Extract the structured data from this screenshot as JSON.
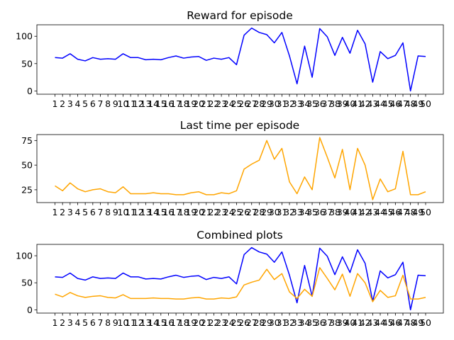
{
  "chart_data": [
    {
      "type": "line",
      "title": "Reward for episode",
      "categories": [
        "1",
        "2",
        "3",
        "4",
        "5",
        "6",
        "7",
        "8",
        "9",
        "10",
        "11",
        "12",
        "13",
        "14",
        "15",
        "16",
        "17",
        "18",
        "19",
        "20",
        "21",
        "22",
        "23",
        "24",
        "25",
        "26",
        "27",
        "28",
        "29",
        "30",
        "31",
        "32",
        "33",
        "34",
        "35",
        "36",
        "37",
        "38",
        "39",
        "40",
        "41",
        "42",
        "43",
        "44",
        "45",
        "46",
        "47",
        "48",
        "49",
        "50"
      ],
      "yticks": [
        0,
        50,
        100
      ],
      "ylim": [
        -6,
        121
      ],
      "series": [
        {
          "color": "#0000ff",
          "values": [
            61,
            60,
            68,
            58,
            55,
            61,
            58,
            59,
            58,
            68,
            61,
            61,
            57,
            58,
            57,
            61,
            64,
            60,
            62,
            63,
            56,
            60,
            58,
            61,
            48,
            102,
            115,
            107,
            103,
            88,
            107,
            64,
            13,
            82,
            25,
            114,
            99,
            65,
            98,
            69,
            111,
            86,
            16,
            72,
            59,
            65,
            88,
            0,
            64,
            63
          ]
        }
      ]
    },
    {
      "type": "line",
      "title": "Last time per episode",
      "categories": [
        "1",
        "2",
        "3",
        "4",
        "5",
        "6",
        "7",
        "8",
        "9",
        "10",
        "11",
        "12",
        "13",
        "14",
        "15",
        "16",
        "17",
        "18",
        "19",
        "20",
        "21",
        "22",
        "23",
        "24",
        "25",
        "26",
        "27",
        "28",
        "29",
        "30",
        "31",
        "32",
        "33",
        "34",
        "35",
        "36",
        "37",
        "38",
        "39",
        "40",
        "41",
        "42",
        "43",
        "44",
        "45",
        "46",
        "47",
        "48",
        "49",
        "50"
      ],
      "yticks": [
        25,
        50,
        75
      ],
      "ylim": [
        12,
        81
      ],
      "series": [
        {
          "color": "#ffa500",
          "values": [
            29,
            24,
            32,
            26,
            23,
            25,
            26,
            23,
            22,
            28,
            21,
            21,
            21,
            22,
            21,
            21,
            20,
            20,
            22,
            23,
            20,
            20,
            22,
            21,
            24,
            46,
            51,
            55,
            75,
            56,
            67,
            33,
            21,
            38,
            25,
            78,
            58,
            37,
            66,
            25,
            67,
            50,
            15,
            36,
            23,
            26,
            64,
            20,
            20,
            23
          ]
        }
      ]
    },
    {
      "type": "line",
      "title": "Combined plots",
      "categories": [
        "1",
        "2",
        "3",
        "4",
        "5",
        "6",
        "7",
        "8",
        "9",
        "10",
        "11",
        "12",
        "13",
        "14",
        "15",
        "16",
        "17",
        "18",
        "19",
        "20",
        "21",
        "22",
        "23",
        "24",
        "25",
        "26",
        "27",
        "28",
        "29",
        "30",
        "31",
        "32",
        "33",
        "34",
        "35",
        "36",
        "37",
        "38",
        "39",
        "40",
        "41",
        "42",
        "43",
        "44",
        "45",
        "46",
        "47",
        "48",
        "49",
        "50"
      ],
      "yticks": [
        0,
        50,
        100
      ],
      "ylim": [
        -6,
        121
      ],
      "series": [
        {
          "color": "#0000ff",
          "values": [
            61,
            60,
            68,
            58,
            55,
            61,
            58,
            59,
            58,
            68,
            61,
            61,
            57,
            58,
            57,
            61,
            64,
            60,
            62,
            63,
            56,
            60,
            58,
            61,
            48,
            102,
            115,
            107,
            103,
            88,
            107,
            64,
            13,
            82,
            25,
            114,
            99,
            65,
            98,
            69,
            111,
            86,
            16,
            72,
            59,
            65,
            88,
            0,
            64,
            63
          ]
        },
        {
          "color": "#ffa500",
          "values": [
            29,
            24,
            32,
            26,
            23,
            25,
            26,
            23,
            22,
            28,
            21,
            21,
            21,
            22,
            21,
            21,
            20,
            20,
            22,
            23,
            20,
            20,
            22,
            21,
            24,
            46,
            51,
            55,
            75,
            56,
            67,
            33,
            21,
            38,
            25,
            78,
            58,
            37,
            66,
            25,
            67,
            50,
            15,
            36,
            23,
            26,
            64,
            20,
            20,
            23
          ]
        }
      ]
    }
  ]
}
